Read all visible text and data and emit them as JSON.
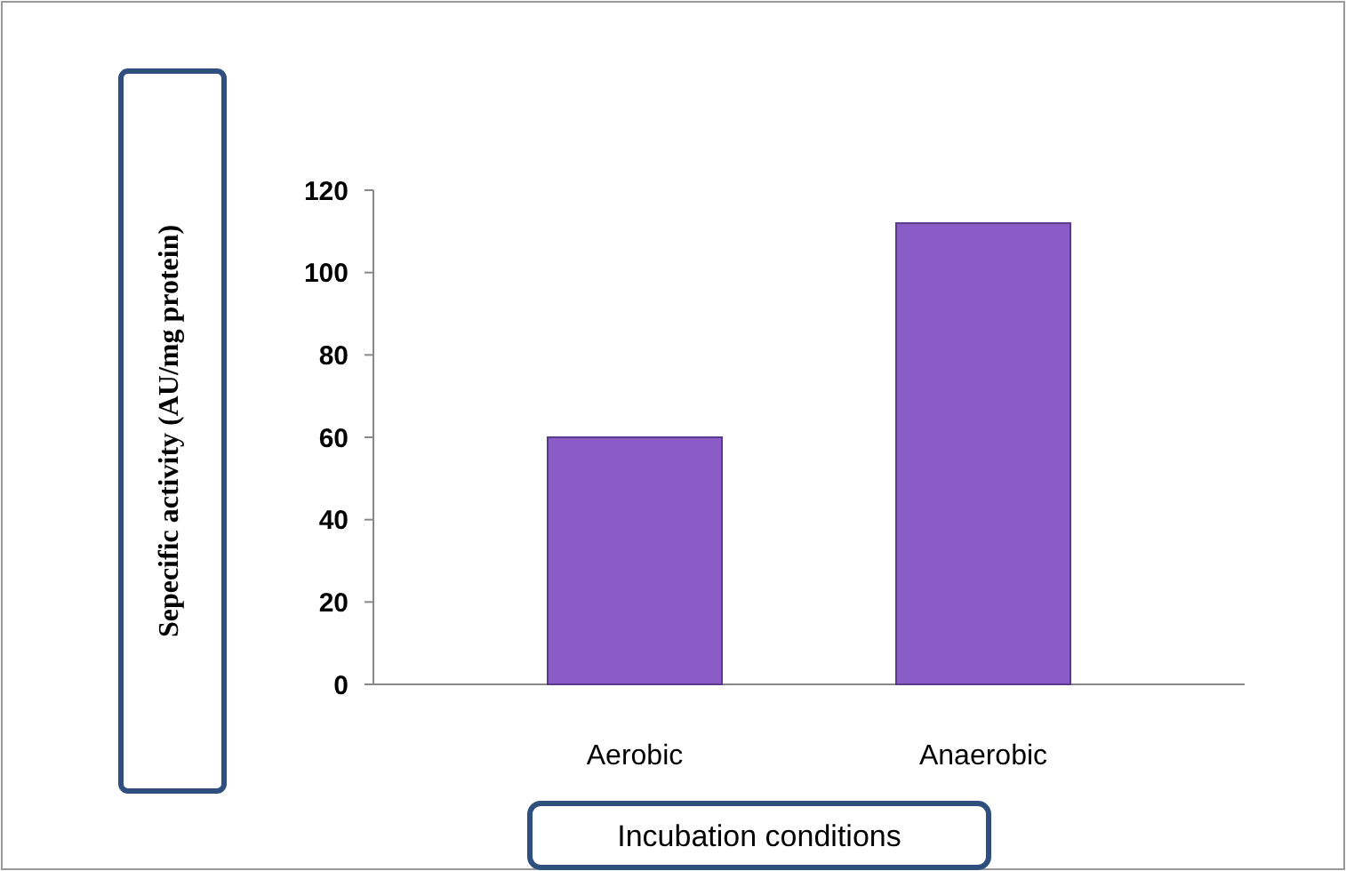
{
  "chart_data": {
    "type": "bar",
    "categories": [
      "Aerobic",
      "Anaerobic"
    ],
    "values": [
      60,
      112
    ],
    "color": "#8a5cc8",
    "ylim": [
      0,
      120
    ],
    "yticks": [
      0,
      20,
      40,
      60,
      80,
      100,
      120
    ],
    "xlabel": "Incubation conditions",
    "ylabel": "Sepecific activity (AU/mg protein)"
  }
}
